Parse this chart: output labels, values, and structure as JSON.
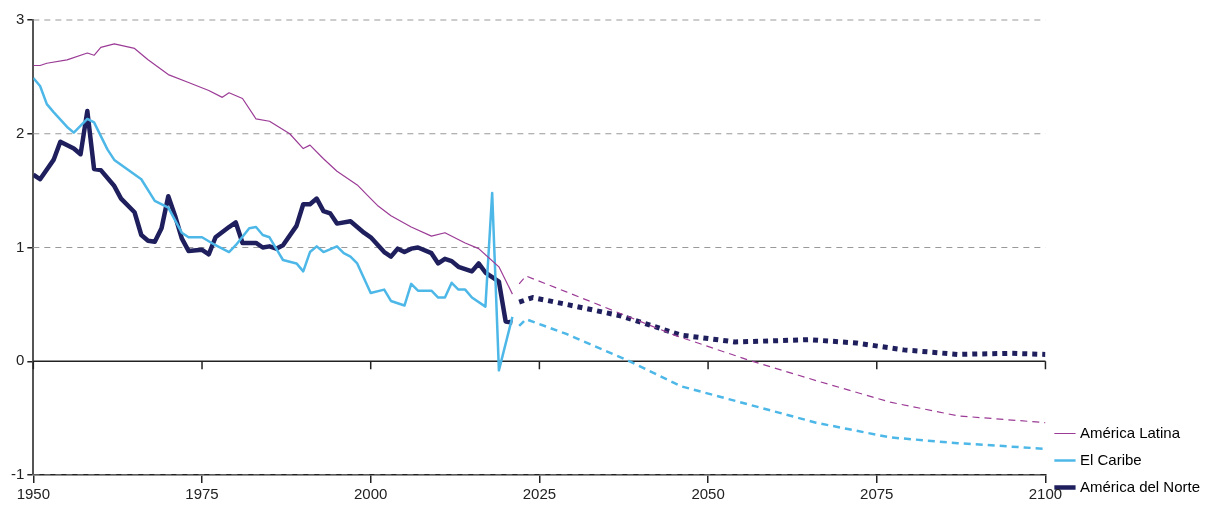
{
  "chart_data": {
    "type": "line",
    "xlim": [
      1950,
      2100
    ],
    "xticks": [
      1950,
      1975,
      2000,
      2025,
      2050,
      2075,
      2100
    ],
    "ylim": [
      -1,
      3
    ],
    "yticks": [
      -1,
      0,
      1,
      2,
      3
    ],
    "grid": "y",
    "legend": "bottom right",
    "marker": "none",
    "series": [
      {
        "name": "América Latina",
        "color": "#9b3b96",
        "line_style": "solid",
        "x": [
          1950,
          1951,
          1952,
          1955,
          1958,
          1959,
          1960,
          1962,
          1965,
          1967,
          1970,
          1973,
          1976,
          1978,
          1979,
          1981,
          1983,
          1985,
          1988,
          1990,
          1991,
          1993,
          1995,
          1998,
          2000,
          2001,
          2003,
          2006,
          2009,
          2011,
          2014,
          2016,
          2019,
          2021
        ],
        "values": [
          2.6,
          2.6,
          2.62,
          2.65,
          2.71,
          2.69,
          2.76,
          2.79,
          2.75,
          2.65,
          2.52,
          2.45,
          2.38,
          2.32,
          2.36,
          2.31,
          2.13,
          2.11,
          2.0,
          1.87,
          1.9,
          1.78,
          1.67,
          1.55,
          1.43,
          1.37,
          1.28,
          1.18,
          1.1,
          1.13,
          1.04,
          0.99,
          0.83,
          0.59
        ]
      },
      {
        "name": "El Caribe",
        "color": "#4db8e8",
        "line_style": "solid",
        "x": [
          1950,
          1951,
          1952,
          1953,
          1955,
          1956,
          1958,
          1959,
          1961,
          1962,
          1966,
          1968,
          1970,
          1972,
          1973,
          1975,
          1977,
          1979,
          1980,
          1982,
          1983,
          1984,
          1985,
          1987,
          1989,
          1990,
          1991,
          1992,
          1993,
          1995,
          1996,
          1997,
          1998,
          2000,
          2002,
          2003,
          2005,
          2006,
          2007,
          2009,
          2010,
          2011,
          2012,
          2013,
          2014,
          2015,
          2017,
          2018,
          2019,
          2021
        ],
        "values": [
          2.49,
          2.42,
          2.26,
          2.19,
          2.06,
          2.01,
          2.13,
          2.1,
          1.86,
          1.77,
          1.6,
          1.41,
          1.35,
          1.13,
          1.09,
          1.09,
          1.02,
          0.96,
          1.02,
          1.17,
          1.18,
          1.11,
          1.09,
          0.89,
          0.86,
          0.79,
          0.96,
          1.01,
          0.96,
          1.01,
          0.95,
          0.92,
          0.86,
          0.6,
          0.63,
          0.53,
          0.49,
          0.68,
          0.62,
          0.62,
          0.56,
          0.56,
          0.69,
          0.63,
          0.63,
          0.56,
          0.48,
          1.48,
          -0.08,
          0.39
        ]
      },
      {
        "name": "América del Norte",
        "color": "#1f1f5e",
        "line_style": "solid",
        "x": [
          1950,
          1951,
          1953,
          1954,
          1956,
          1957,
          1958,
          1959,
          1960,
          1962,
          1963,
          1965,
          1966,
          1967,
          1968,
          1969,
          1970,
          1971,
          1972,
          1973,
          1975,
          1976,
          1977,
          1979,
          1980,
          1981,
          1983,
          1984,
          1985,
          1986,
          1987,
          1989,
          1990,
          1991,
          1992,
          1993,
          1994,
          1995,
          1997,
          1999,
          2000,
          2002,
          2003,
          2004,
          2005,
          2006,
          2007,
          2009,
          2010,
          2011,
          2012,
          2013,
          2015,
          2016,
          2017,
          2019,
          2020,
          2021
        ],
        "values": [
          1.64,
          1.6,
          1.77,
          1.93,
          1.87,
          1.82,
          2.2,
          1.69,
          1.68,
          1.54,
          1.43,
          1.31,
          1.11,
          1.06,
          1.05,
          1.17,
          1.45,
          1.28,
          1.08,
          0.97,
          0.98,
          0.94,
          1.09,
          1.18,
          1.22,
          1.04,
          1.04,
          1.0,
          1.01,
          0.99,
          1.02,
          1.19,
          1.38,
          1.38,
          1.43,
          1.32,
          1.3,
          1.21,
          1.23,
          1.13,
          1.09,
          0.96,
          0.92,
          0.99,
          0.96,
          0.99,
          1.0,
          0.95,
          0.86,
          0.9,
          0.88,
          0.83,
          0.79,
          0.86,
          0.78,
          0.7,
          0.35,
          0.34
        ]
      },
      {
        "color": "#9b3b96",
        "line_style": "dashed",
        "x": [
          2022,
          2023,
          2029,
          2037,
          2045,
          2056,
          2066,
          2077,
          2087,
          2100
        ],
        "values": [
          0.68,
          0.75,
          0.61,
          0.42,
          0.23,
          0.01,
          -0.17,
          -0.36,
          -0.48,
          -0.54
        ]
      },
      {
        "color": "#4db8e8",
        "line_style": "dashed",
        "x": [
          2022,
          2023,
          2029,
          2038,
          2046,
          2056,
          2066,
          2077,
          2087,
          2100
        ],
        "values": [
          0.31,
          0.37,
          0.24,
          0.01,
          -0.22,
          -0.38,
          -0.54,
          -0.67,
          -0.72,
          -0.77
        ]
      },
      {
        "color": "#1f1f5e",
        "line_style": "dotted",
        "x": [
          2022,
          2024,
          2029,
          2037,
          2046,
          2054,
          2060,
          2065,
          2072,
          2079,
          2087,
          2095,
          2100
        ],
        "values": [
          0.52,
          0.56,
          0.5,
          0.4,
          0.23,
          0.17,
          0.18,
          0.19,
          0.16,
          0.1,
          0.06,
          0.07,
          0.06
        ]
      }
    ]
  }
}
